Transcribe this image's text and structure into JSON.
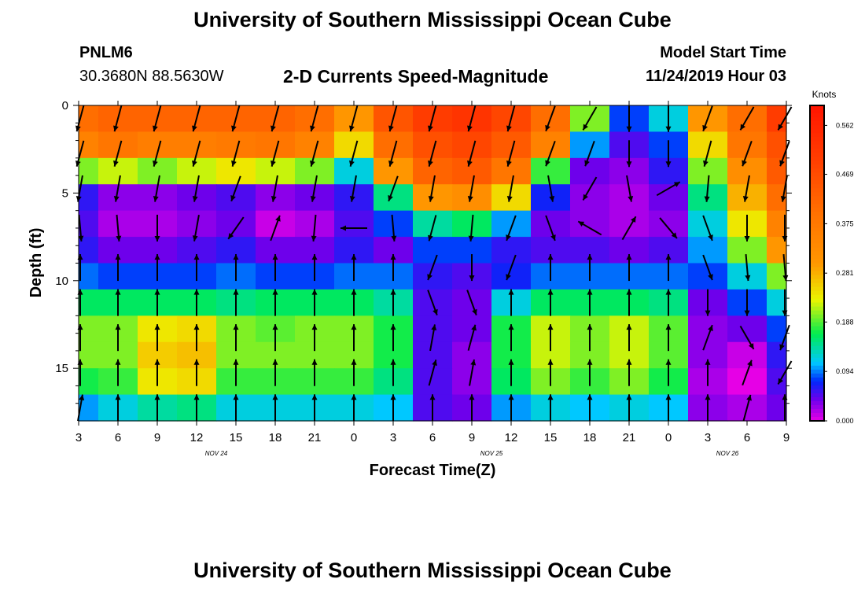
{
  "header": {
    "title": "University of Southern Mississippi Ocean Cube",
    "station": "PNLM6",
    "coordinates": "30.3680N 88.5630W",
    "subtitle": "2-D Currents Speed-Magnitude",
    "model_start_label": "Model Start Time",
    "model_start_value": "11/24/2019 Hour 03"
  },
  "footer": {
    "title": "University of Southern Mississippi Ocean Cube"
  },
  "chart_data": {
    "type": "heatmap",
    "title": "2-D Currents Speed-Magnitude",
    "xlabel": "Forecast Time(Z)",
    "ylabel": "Depth (ft)",
    "x_ticks": [
      "3",
      "6",
      "9",
      "12",
      "15",
      "18",
      "21",
      "0",
      "3",
      "6",
      "9",
      "12",
      "15",
      "18",
      "21",
      "0",
      "3",
      "6",
      "9"
    ],
    "date_labels": [
      {
        "label": "NOV 24",
        "after_tick": 3
      },
      {
        "label": "NOV 25",
        "after_tick": 10
      },
      {
        "label": "NOV 26",
        "after_tick": 16
      }
    ],
    "y_ticks": [
      0,
      5,
      10,
      15
    ],
    "ylim": [
      0,
      18
    ],
    "colorbar": {
      "label": "Knots",
      "ticks": [
        "0.562",
        "0.469",
        "0.375",
        "0.281",
        "0.188",
        "0.094",
        "0.000"
      ],
      "range": [
        0.0,
        0.6
      ]
    },
    "time_hours_from_start": [
      0,
      3,
      6,
      9,
      12,
      15,
      18,
      21,
      24,
      27,
      30,
      33,
      36,
      39,
      42,
      45,
      48,
      51,
      54
    ],
    "depths_ft": [
      0.75,
      2.25,
      3.75,
      5.25,
      6.75,
      8.25,
      9.75,
      11.25,
      12.75,
      14.25,
      15.75,
      17.25
    ],
    "speed_knots": [
      [
        0.4,
        0.42,
        0.42,
        0.42,
        0.42,
        0.42,
        0.4,
        0.3,
        0.45,
        0.5,
        0.52,
        0.48,
        0.4,
        0.2,
        0.08,
        0.12,
        0.3,
        0.4,
        0.5
      ],
      [
        0.35,
        0.38,
        0.36,
        0.36,
        0.37,
        0.38,
        0.35,
        0.25,
        0.4,
        0.46,
        0.48,
        0.44,
        0.35,
        0.1,
        0.05,
        0.08,
        0.25,
        0.38,
        0.46
      ],
      [
        0.2,
        0.22,
        0.2,
        0.22,
        0.24,
        0.22,
        0.2,
        0.12,
        0.3,
        0.42,
        0.44,
        0.38,
        0.18,
        0.04,
        0.03,
        0.06,
        0.2,
        0.32,
        0.44
      ],
      [
        0.06,
        0.03,
        0.03,
        0.04,
        0.05,
        0.03,
        0.04,
        0.06,
        0.15,
        0.3,
        0.32,
        0.25,
        0.07,
        0.03,
        0.02,
        0.04,
        0.15,
        0.28,
        0.4
      ],
      [
        0.05,
        0.02,
        0.02,
        0.03,
        0.04,
        0.01,
        0.02,
        0.05,
        0.08,
        0.14,
        0.16,
        0.1,
        0.04,
        0.03,
        0.02,
        0.03,
        0.12,
        0.24,
        0.35
      ],
      [
        0.06,
        0.04,
        0.04,
        0.05,
        0.06,
        0.04,
        0.04,
        0.06,
        0.04,
        0.08,
        0.08,
        0.06,
        0.05,
        0.05,
        0.04,
        0.05,
        0.1,
        0.2,
        0.3
      ],
      [
        0.09,
        0.08,
        0.08,
        0.08,
        0.09,
        0.08,
        0.08,
        0.09,
        0.09,
        0.06,
        0.05,
        0.07,
        0.09,
        0.09,
        0.09,
        0.09,
        0.08,
        0.12,
        0.2
      ],
      [
        0.16,
        0.16,
        0.16,
        0.16,
        0.15,
        0.16,
        0.16,
        0.16,
        0.14,
        0.05,
        0.04,
        0.12,
        0.16,
        0.16,
        0.16,
        0.15,
        0.04,
        0.08,
        0.12
      ],
      [
        0.2,
        0.2,
        0.24,
        0.25,
        0.2,
        0.19,
        0.2,
        0.2,
        0.17,
        0.05,
        0.04,
        0.17,
        0.22,
        0.2,
        0.22,
        0.19,
        0.03,
        0.04,
        0.08
      ],
      [
        0.2,
        0.2,
        0.26,
        0.27,
        0.2,
        0.2,
        0.2,
        0.2,
        0.17,
        0.05,
        0.03,
        0.17,
        0.22,
        0.2,
        0.22,
        0.19,
        0.03,
        0.01,
        0.06
      ],
      [
        0.17,
        0.18,
        0.24,
        0.25,
        0.18,
        0.18,
        0.18,
        0.18,
        0.15,
        0.05,
        0.03,
        0.16,
        0.2,
        0.18,
        0.2,
        0.17,
        0.02,
        0.0,
        0.05
      ],
      [
        0.1,
        0.12,
        0.14,
        0.15,
        0.12,
        0.12,
        0.12,
        0.12,
        0.11,
        0.05,
        0.04,
        0.1,
        0.12,
        0.11,
        0.12,
        0.11,
        0.03,
        0.02,
        0.04
      ]
    ],
    "arrow_rows_depth_ft": [
      0.75,
      2.75,
      4.75,
      7.0,
      9.25,
      11.25,
      13.25,
      15.25,
      17.25
    ],
    "current_direction_deg": [
      [
        195,
        195,
        195,
        195,
        195,
        195,
        195,
        195,
        195,
        195,
        195,
        195,
        200,
        210,
        180,
        180,
        200,
        210,
        210
      ],
      [
        195,
        195,
        195,
        195,
        195,
        195,
        195,
        195,
        195,
        195,
        195,
        195,
        200,
        200,
        180,
        180,
        195,
        200,
        200
      ],
      [
        190,
        190,
        190,
        190,
        200,
        190,
        190,
        190,
        200,
        190,
        190,
        190,
        170,
        210,
        170,
        60,
        185,
        190,
        190
      ],
      [
        175,
        175,
        180,
        190,
        215,
        20,
        185,
        270,
        175,
        195,
        185,
        200,
        160,
        300,
        30,
        140,
        160,
        180,
        180
      ],
      [
        0,
        0,
        0,
        0,
        0,
        0,
        0,
        0,
        0,
        200,
        180,
        200,
        0,
        0,
        0,
        0,
        160,
        175,
        175
      ],
      [
        0,
        0,
        0,
        0,
        0,
        0,
        0,
        0,
        0,
        160,
        160,
        0,
        0,
        0,
        0,
        0,
        180,
        180,
        180
      ],
      [
        0,
        0,
        0,
        0,
        0,
        0,
        0,
        0,
        0,
        10,
        15,
        0,
        0,
        0,
        0,
        0,
        20,
        150,
        200
      ],
      [
        0,
        0,
        0,
        0,
        0,
        0,
        0,
        0,
        0,
        15,
        10,
        0,
        0,
        0,
        0,
        0,
        0,
        20,
        210
      ],
      [
        10,
        0,
        0,
        0,
        0,
        0,
        0,
        0,
        0,
        0,
        0,
        0,
        0,
        0,
        0,
        0,
        0,
        15,
        0
      ]
    ]
  }
}
